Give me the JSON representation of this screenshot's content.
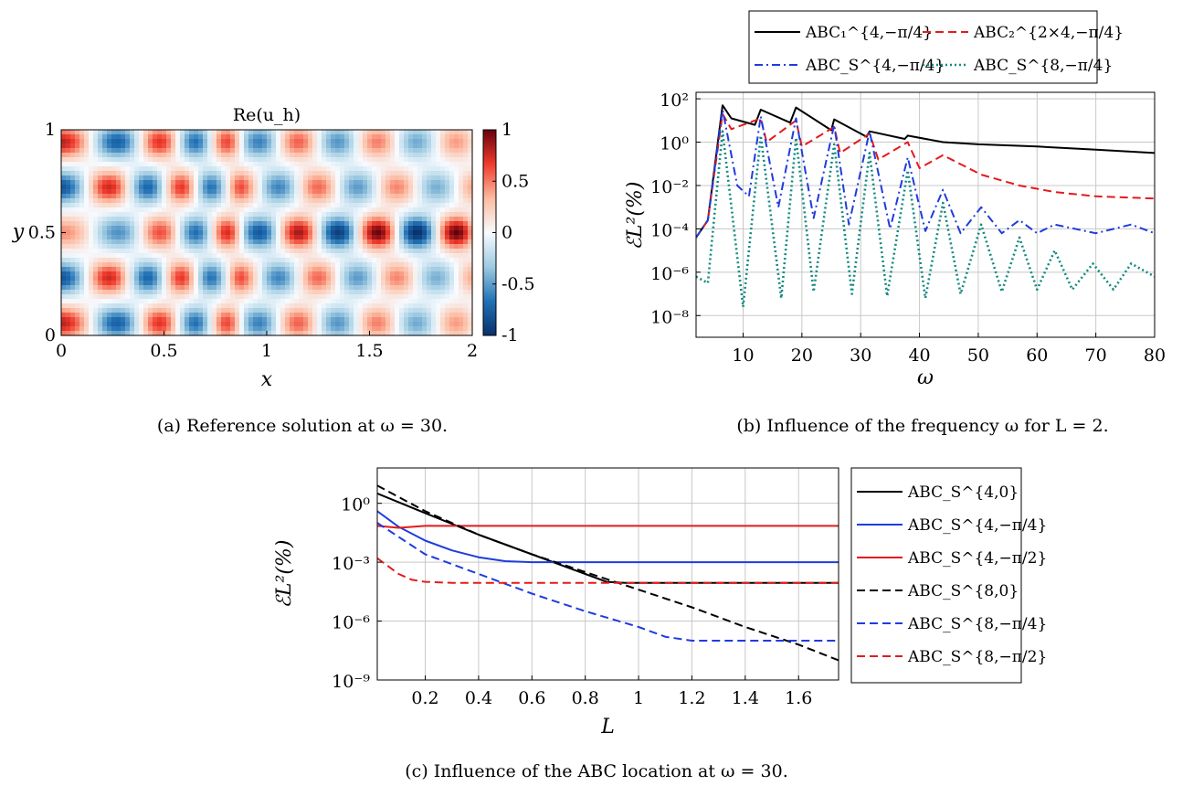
{
  "chart_data": [
    {
      "id": "a",
      "type": "heatmap",
      "title": "Re(u_h)",
      "xlabel": "x",
      "ylabel": "y",
      "xlim": [
        0,
        2
      ],
      "ylim": [
        0,
        1
      ],
      "xticks": [
        "0",
        "0.5",
        "1",
        "1.5",
        "2"
      ],
      "yticks": [
        "0",
        "0.5",
        "1"
      ],
      "colorbar": {
        "range": [
          -1,
          1
        ],
        "ticks": [
          "1",
          "0.5",
          "0",
          "-0.5",
          "-1"
        ],
        "colormap": [
          "#08306b",
          "#2171b5",
          "#9ecae1",
          "#f7fbff",
          "#fcbba1",
          "#ef3b2c",
          "#67000d"
        ]
      },
      "field": {
        "omega": 30,
        "bands_y": [
          0.06,
          0.28,
          0.5,
          0.72,
          0.94
        ],
        "peak_x": [
          0.17,
          0.28,
          0.4,
          0.52,
          0.65,
          0.77,
          0.88,
          1.0,
          1.11,
          1.22,
          1.33,
          1.44,
          1.55,
          1.67,
          1.78,
          1.89,
          2.0
        ]
      },
      "caption": "(a) Reference solution at ω = 30."
    },
    {
      "id": "b",
      "type": "line",
      "xlabel": "ω",
      "ylabel": "ℰL²(%)",
      "xlim": [
        2,
        80
      ],
      "ylim_log10": [
        -9,
        2.3
      ],
      "yscale": "log",
      "grid": true,
      "xticks": [
        "10",
        "20",
        "30",
        "40",
        "50",
        "60",
        "70",
        "80"
      ],
      "yticks": [
        "10²",
        "10⁰",
        "10⁻²",
        "10⁻⁴",
        "10⁻⁶",
        "10⁻⁸"
      ],
      "legend_position": "top, outside",
      "resonances": [
        6.5,
        13,
        19,
        25.5,
        31.5,
        38,
        44,
        50.5,
        57,
        63,
        69.5,
        76
      ],
      "series": [
        {
          "name": "ABC₁^{4,−π/4}",
          "color": "#000000",
          "style": "solid",
          "x": [
            2,
            4,
            6.5,
            8,
            12,
            13,
            18,
            19,
            25,
            25.5,
            31,
            31.5,
            37.5,
            38,
            44,
            50,
            60,
            70,
            80
          ],
          "log10_values": [
            -4.4,
            -3.6,
            1.7,
            1.1,
            0.8,
            1.5,
            0.9,
            1.6,
            0.55,
            1.05,
            0.25,
            0.5,
            0.15,
            0.3,
            0.0,
            -0.1,
            -0.2,
            -0.35,
            -0.5
          ]
        },
        {
          "name": "ABC₂^{2×4,−π/4}",
          "color": "#e41a1c",
          "style": "dashed",
          "x": [
            2,
            4,
            6.5,
            8,
            13,
            14,
            19,
            20,
            25.5,
            26.5,
            31.5,
            33,
            38,
            40,
            44,
            50.5,
            57,
            63,
            70,
            80
          ],
          "log10_values": [
            -4.4,
            -3.6,
            1.3,
            0.6,
            1.1,
            0.0,
            1.0,
            -0.2,
            0.7,
            -0.5,
            0.4,
            -0.8,
            0.0,
            -1.2,
            -0.6,
            -1.5,
            -2.0,
            -2.3,
            -2.5,
            -2.6
          ]
        },
        {
          "name": "ABC_S^{4,−π/4}",
          "color": "#1f3cde",
          "style": "dashdot",
          "x": [
            2,
            4,
            6.5,
            9,
            11,
            13,
            16,
            19,
            22,
            25.5,
            28,
            31.5,
            35,
            38,
            41,
            44,
            47,
            50.5,
            54,
            57,
            60,
            63,
            70,
            76,
            80
          ],
          "log10_values": [
            -4.4,
            -3.6,
            1.5,
            -2.0,
            -2.5,
            1.2,
            -3.0,
            1.1,
            -3.5,
            0.8,
            -3.8,
            0.5,
            -4.0,
            -0.7,
            -4.1,
            -2.2,
            -4.2,
            -3.0,
            -4.2,
            -3.6,
            -4.2,
            -3.8,
            -4.2,
            -3.8,
            -4.2
          ]
        },
        {
          "name": "ABC_S^{8,−π/4}",
          "color": "#138a80",
          "style": "dotted",
          "x": [
            2,
            4,
            6.5,
            10,
            13,
            16.5,
            19,
            22,
            25.5,
            28.5,
            31.5,
            34.5,
            38,
            41,
            44,
            47,
            50.5,
            54,
            57,
            60,
            63,
            66,
            69.5,
            73,
            76,
            80
          ],
          "log10_values": [
            -6.2,
            -6.5,
            0.5,
            -7.6,
            0.3,
            -7.2,
            0.2,
            -6.9,
            -0.1,
            -7.0,
            -0.5,
            -7.1,
            -1.3,
            -7.2,
            -2.8,
            -7.0,
            -3.8,
            -6.9,
            -4.4,
            -6.8,
            -5.0,
            -6.8,
            -5.6,
            -6.8,
            -5.6,
            -6.2
          ]
        }
      ],
      "caption": "(b) Influence of the frequency ω for L = 2."
    },
    {
      "id": "c",
      "type": "line",
      "xlabel": "L",
      "ylabel": "ℰL²(%)",
      "xlim": [
        0.02,
        1.75
      ],
      "ylim_log10": [
        -9,
        1.8
      ],
      "yscale": "log",
      "grid": true,
      "xticks": [
        "0.2",
        "0.4",
        "0.6",
        "0.8",
        "1",
        "1.2",
        "1.4",
        "1.6"
      ],
      "yticks": [
        "10⁰",
        "10⁻³",
        "10⁻⁶",
        "10⁻⁹"
      ],
      "legend_position": "right, outside",
      "series": [
        {
          "name": "ABC_S^{4,0}",
          "color": "#000000",
          "style": "solid",
          "x": [
            0.02,
            0.2,
            0.4,
            0.6,
            0.8,
            0.88,
            0.95,
            1.2,
            1.75
          ],
          "log10_values": [
            0.5,
            -0.5,
            -1.6,
            -2.6,
            -3.6,
            -4.0,
            -4.05,
            -4.05,
            -4.05
          ]
        },
        {
          "name": "ABC_S^{4,−π/4}",
          "color": "#1f3cde",
          "style": "solid",
          "x": [
            0.02,
            0.1,
            0.2,
            0.3,
            0.4,
            0.5,
            0.6,
            0.8,
            1.0,
            1.75
          ],
          "log10_values": [
            -0.4,
            -1.2,
            -1.9,
            -2.4,
            -2.75,
            -2.95,
            -3.0,
            -3.0,
            -3.0,
            -3.0
          ]
        },
        {
          "name": "ABC_S^{4,−π/2}",
          "color": "#e41a1c",
          "style": "solid",
          "x": [
            0.02,
            0.1,
            0.2,
            0.4,
            1.0,
            1.75
          ],
          "log10_values": [
            -1.15,
            -1.25,
            -1.15,
            -1.15,
            -1.15,
            -1.15
          ]
        },
        {
          "name": "ABC_S^{8,0}",
          "color": "#000000",
          "style": "dashed",
          "x": [
            0.02,
            0.2,
            0.4,
            0.6,
            0.8,
            1.0,
            1.2,
            1.4,
            1.6,
            1.75
          ],
          "log10_values": [
            0.9,
            -0.4,
            -1.6,
            -2.6,
            -3.5,
            -4.4,
            -5.3,
            -6.3,
            -7.2,
            -8.0
          ]
        },
        {
          "name": "ABC_S^{8,−π/4}",
          "color": "#1f3cde",
          "style": "dashed",
          "x": [
            0.02,
            0.2,
            0.4,
            0.6,
            0.8,
            1.0,
            1.1,
            1.2,
            1.3,
            1.75
          ],
          "log10_values": [
            -1.0,
            -2.6,
            -3.6,
            -4.6,
            -5.5,
            -6.3,
            -6.8,
            -7.0,
            -7.0,
            -7.0
          ]
        },
        {
          "name": "ABC_S^{8,−π/2}",
          "color": "#e41a1c",
          "style": "dashed",
          "x": [
            0.02,
            0.1,
            0.15,
            0.2,
            0.3,
            1.0,
            1.75
          ],
          "log10_values": [
            -2.8,
            -3.6,
            -3.9,
            -4.0,
            -4.05,
            -4.05,
            -4.05
          ]
        }
      ],
      "caption": "(c) Influence of the ABC location at ω = 30."
    }
  ]
}
